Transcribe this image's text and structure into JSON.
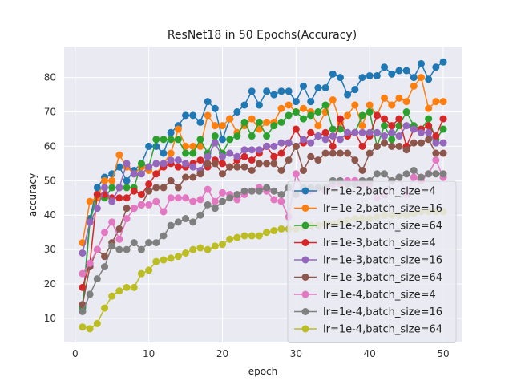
{
  "chart_data": {
    "type": "line",
    "title": "ResNet18 in 50 Epochs(Accuracy)",
    "xlabel": "epoch",
    "ylabel": "accuracy",
    "xlim": [
      -1.5,
      52.5
    ],
    "ylim": [
      3,
      89
    ],
    "xticks": [
      0,
      10,
      20,
      30,
      40,
      50
    ],
    "yticks": [
      10,
      20,
      30,
      40,
      50,
      60,
      70,
      80
    ],
    "grid": true,
    "legend_position": "lower-right",
    "x": [
      1,
      2,
      3,
      4,
      5,
      6,
      7,
      8,
      9,
      10,
      11,
      12,
      13,
      14,
      15,
      16,
      17,
      18,
      19,
      20,
      21,
      22,
      23,
      24,
      25,
      26,
      27,
      28,
      29,
      30,
      31,
      32,
      33,
      34,
      35,
      36,
      37,
      38,
      39,
      40,
      41,
      42,
      43,
      44,
      45,
      46,
      47,
      48,
      49,
      50
    ],
    "series": [
      {
        "name": "lr=1e-2,batch_size=4",
        "color": "#1f77b4",
        "values": [
          13.5,
          39,
          48,
          51,
          52,
          54,
          50,
          53,
          55,
          60,
          60,
          58,
          64,
          66,
          69,
          69,
          67,
          73,
          71,
          62,
          68,
          70,
          72,
          76,
          72,
          76,
          75,
          76,
          76,
          73,
          77.5,
          73,
          77,
          77,
          81,
          80,
          75,
          76.5,
          80,
          80.5,
          80.5,
          83,
          81,
          82,
          82,
          80,
          84,
          79.5,
          83,
          84.5
        ]
      },
      {
        "name": "lr=1e-2,batch_size=16",
        "color": "#ff7f0e",
        "values": [
          32,
          44,
          45,
          50,
          50,
          57.5,
          54,
          52,
          54,
          53,
          52,
          55,
          58,
          65,
          60,
          60,
          60,
          69,
          66,
          66,
          68,
          64,
          66,
          68,
          65,
          67,
          67,
          71,
          72,
          70,
          71,
          70,
          66,
          70,
          73.5,
          67,
          69,
          72,
          66,
          72,
          69,
          74,
          72,
          74,
          73,
          77.5,
          80,
          71,
          73,
          73
        ]
      },
      {
        "name": "lr=1e-2,batch_size=64",
        "color": "#2ca02c",
        "values": [
          13,
          38,
          46,
          45,
          48,
          48,
          48,
          48,
          55,
          54,
          62,
          62,
          62,
          62,
          58,
          58,
          62,
          58,
          63,
          58,
          62,
          63,
          67,
          63,
          67,
          63,
          66,
          67,
          69,
          70,
          68,
          69,
          70,
          72,
          65,
          65,
          64,
          64,
          69,
          70,
          60,
          66,
          62,
          66,
          70,
          66,
          65,
          68,
          62,
          65
        ]
      },
      {
        "name": "lr=1e-3,batch_size=4",
        "color": "#d62728",
        "values": [
          19,
          26,
          46,
          46,
          45,
          45,
          45,
          47,
          46,
          49,
          52,
          54,
          55,
          54,
          54,
          55,
          56,
          54,
          56,
          55,
          54,
          56,
          57,
          56,
          58,
          60,
          57,
          58,
          61,
          65,
          61,
          64,
          63,
          64,
          60,
          68,
          63,
          64,
          60,
          63,
          69,
          68,
          66,
          68,
          60,
          65,
          65,
          66,
          63,
          68
        ]
      },
      {
        "name": "lr=1e-3,batch_size=16",
        "color": "#9467bd",
        "values": [
          29,
          38,
          42,
          48,
          44,
          48,
          55,
          52,
          52,
          54,
          55,
          55,
          56,
          56,
          55,
          54,
          53,
          57,
          61,
          57,
          58,
          57,
          59,
          59,
          59,
          60,
          60,
          61,
          61,
          60,
          62,
          61,
          63,
          62,
          63,
          62,
          64,
          64,
          64,
          64,
          64,
          63,
          64,
          63,
          66,
          65,
          64,
          64,
          61,
          61
        ]
      },
      {
        "name": "lr=1e-3,batch_size=64",
        "color": "#8c564b",
        "values": [
          14,
          25,
          30,
          28,
          32,
          36,
          42,
          42,
          43,
          47,
          48,
          48,
          50,
          48,
          51,
          51,
          52,
          55,
          55,
          52,
          54,
          54,
          54,
          53,
          55,
          55,
          55,
          53,
          56,
          60,
          53,
          57,
          56,
          58,
          58,
          58,
          58,
          56,
          53,
          58,
          60,
          61,
          60,
          60,
          59,
          61,
          61,
          62,
          58,
          58
        ]
      },
      {
        "name": "lr=1e-4,batch_size=4",
        "color": "#e377c2",
        "values": [
          23,
          26,
          30,
          35,
          38,
          33,
          39,
          42,
          43,
          43,
          44,
          41,
          45,
          45,
          45,
          44,
          44.5,
          47.5,
          44,
          46.5,
          46,
          44.5,
          46,
          47,
          48,
          47,
          44.5,
          44,
          39.5,
          52,
          47,
          47,
          48,
          47,
          49,
          49,
          50,
          50,
          49,
          49,
          45,
          46,
          50,
          51,
          46,
          51,
          50,
          52,
          56,
          51
        ]
      },
      {
        "name": "lr=1e-4,batch_size=16",
        "color": "#7f7f7f",
        "values": [
          12,
          17,
          21.5,
          25,
          31,
          30,
          30,
          32,
          30,
          32,
          32,
          34,
          37,
          38,
          39,
          38,
          40,
          43,
          42,
          44,
          45,
          46,
          47,
          47,
          47,
          48,
          47,
          46,
          48,
          46,
          48,
          48,
          48,
          48,
          50,
          50,
          49,
          49,
          50,
          50,
          52,
          52,
          50,
          51,
          52,
          53,
          51,
          52,
          52,
          52
        ]
      },
      {
        "name": "lr=1e-4,batch_size=64",
        "color": "#bcbd22",
        "values": [
          7.5,
          7,
          8.5,
          13,
          16.5,
          18,
          19,
          19,
          23,
          24,
          26.5,
          27,
          27.5,
          28,
          29,
          30,
          30.5,
          30,
          31,
          31.5,
          33,
          33.5,
          34,
          34,
          34,
          35,
          35.5,
          36,
          36,
          36,
          36.5,
          37,
          37,
          37.5,
          37.5,
          38,
          38.5,
          39,
          39,
          39,
          39.5,
          40,
          40,
          40,
          40,
          40.5,
          41,
          41,
          41,
          41
        ]
      }
    ]
  }
}
